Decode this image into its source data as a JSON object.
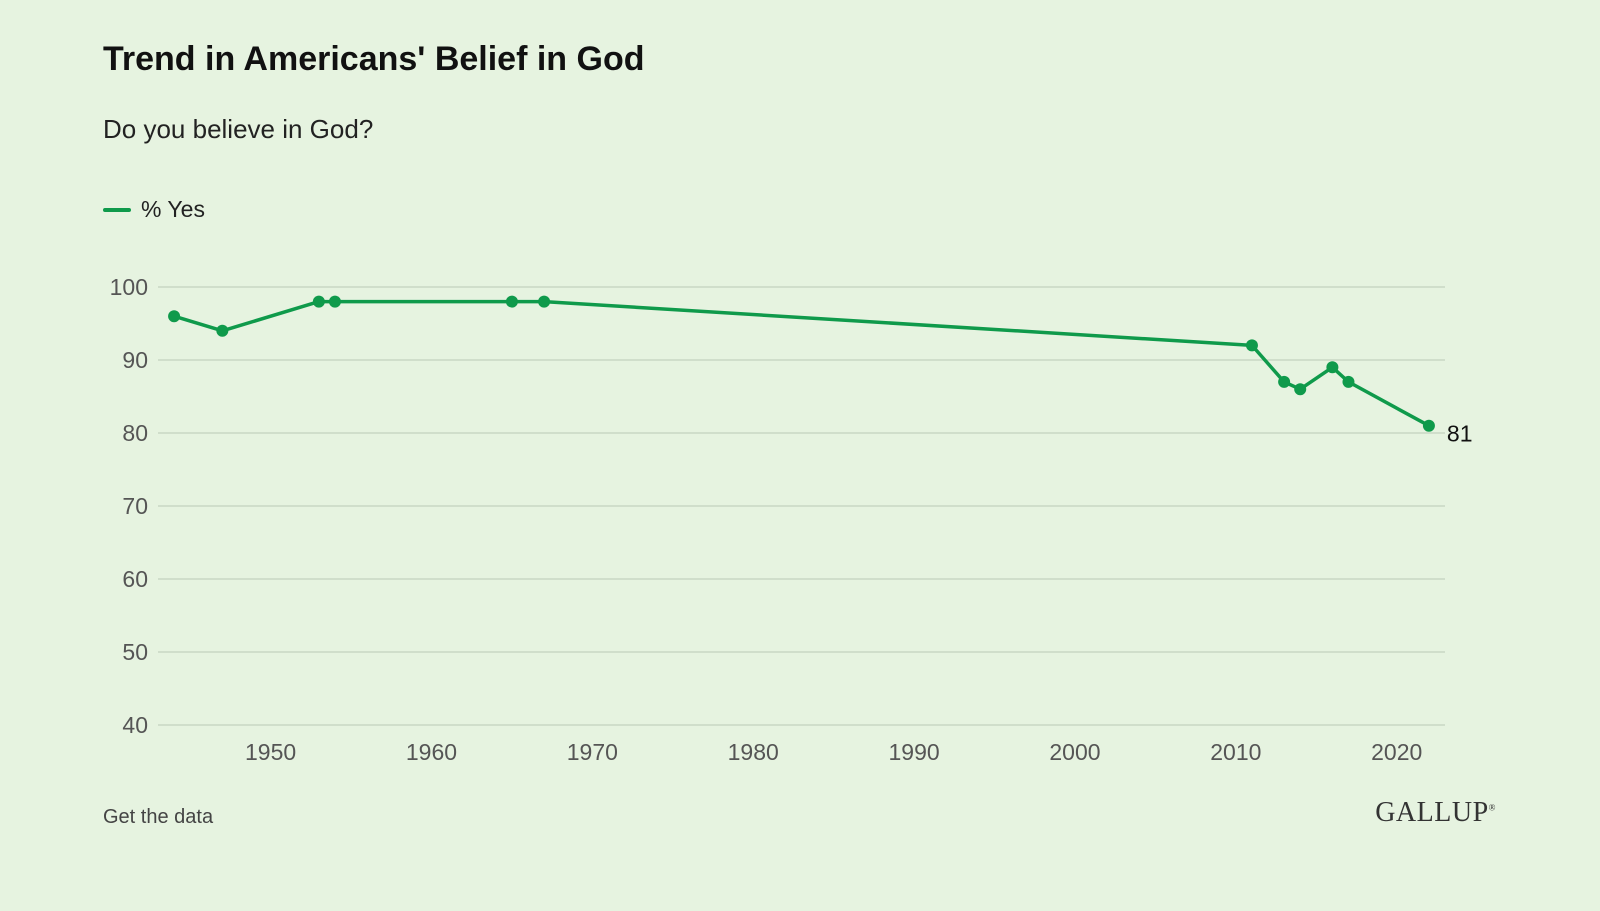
{
  "header": {
    "title": "Trend in Americans' Belief in God",
    "subtitle": "Do you believe in God?"
  },
  "footer": {
    "get_data_label": "Get the data",
    "brand": "GALLUP"
  },
  "colors": {
    "background": "#e6f3e0",
    "series": "#0f9a4b",
    "grid": "#c9d8c4"
  },
  "chart_data": {
    "type": "line",
    "legend_position": "top-left",
    "grid": true,
    "xlim": [
      1943,
      2023
    ],
    "ylim": [
      40,
      100
    ],
    "x_ticks": [
      1950,
      1960,
      1970,
      1980,
      1990,
      2000,
      2010,
      2020
    ],
    "y_ticks": [
      40,
      50,
      60,
      70,
      80,
      90,
      100
    ],
    "series": [
      {
        "name": "% Yes",
        "x": [
          1944,
          1947,
          1953,
          1954,
          1965,
          1967,
          2011,
          2013,
          2014,
          2016,
          2017,
          2022
        ],
        "y": [
          96,
          94,
          98,
          98,
          98,
          98,
          92,
          87,
          86,
          89,
          87,
          81
        ],
        "end_label": "81"
      }
    ]
  }
}
